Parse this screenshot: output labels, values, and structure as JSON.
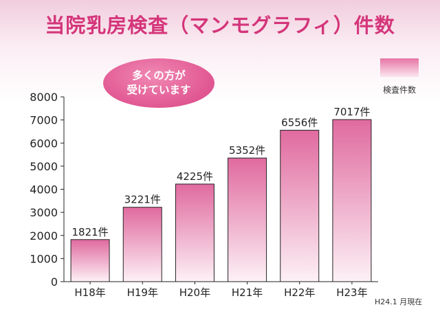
{
  "title": "当院乳房検査（マンモグラフィ）件数",
  "bubble": {
    "line1": "多くの方が",
    "line2": "受けています"
  },
  "legend": {
    "label": "検査件数"
  },
  "footnote": "H24.1 月現在",
  "colors": {
    "title": "#d4357a",
    "bar_top": "#e06a9f",
    "bar_bottom": "#fdf1f6",
    "bubble": "#e35d96"
  },
  "chart_data": {
    "type": "bar",
    "categories": [
      "H18年",
      "H19年",
      "H20年",
      "H21年",
      "H22年",
      "H23年"
    ],
    "values": [
      1821,
      3221,
      4225,
      5352,
      6556,
      7017
    ],
    "data_labels": [
      "1821件",
      "3221件",
      "4225件",
      "5352件",
      "6556件",
      "7017件"
    ],
    "series": [
      {
        "name": "検査件数",
        "values": [
          1821,
          3221,
          4225,
          5352,
          6556,
          7017
        ]
      }
    ],
    "ylim": [
      0,
      8000
    ],
    "yticks": [
      0,
      1000,
      2000,
      3000,
      4000,
      5000,
      6000,
      7000,
      8000
    ],
    "grid": false,
    "legend_position": "top-right"
  }
}
